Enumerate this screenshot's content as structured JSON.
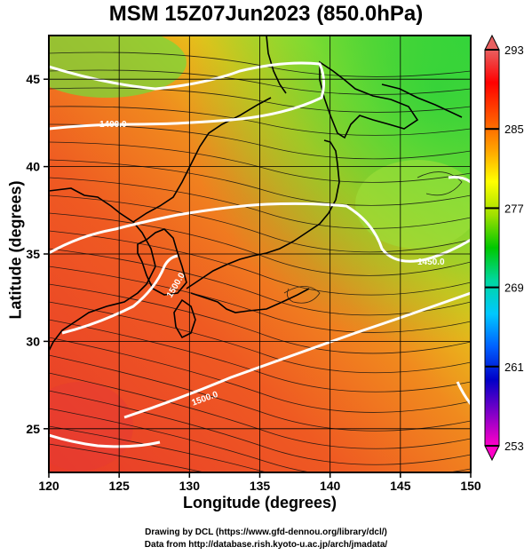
{
  "title": "MSM 15Z07Jun2023 (850.0hPa)",
  "xlabel": "Longitude (degrees)",
  "ylabel": "Latitude  (degrees)",
  "credits": {
    "line1": "Drawing by DCL (https://www.gfd-dennou.org/library/dcl/)",
    "line2": "Data from http://database.rish.kyoto-u.ac.jp/arch/jmadata/"
  },
  "map": {
    "lon_range": [
      120,
      150
    ],
    "lat_range": [
      22.5,
      47.5
    ],
    "x_ticks": [
      "120",
      "125",
      "130",
      "135",
      "140",
      "145",
      "150"
    ],
    "y_ticks": [
      "25",
      "30",
      "35",
      "40",
      "45"
    ],
    "grid": true
  },
  "colorbar": {
    "min": 253,
    "max": 293,
    "tick_labels": [
      "293",
      "285",
      "277",
      "269",
      "261",
      "253"
    ],
    "stops": [
      "#ff00c8",
      "#8000c8",
      "#0000c8",
      "#0060ff",
      "#00c8ff",
      "#00d8a0",
      "#00c800",
      "#a0e000",
      "#ffff00",
      "#ffa000",
      "#ff5000",
      "#ff0000",
      "#e86060"
    ]
  },
  "contour_labels": [
    "1400.0",
    "1450.0",
    "1500.0",
    "1500.0"
  ]
}
